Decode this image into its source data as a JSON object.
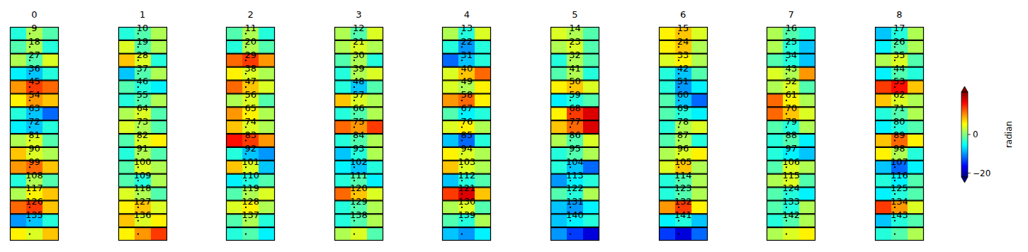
{
  "chart_data": {
    "type": "heatmap",
    "color": "jet",
    "tick_labels": false,
    "colorbar": {
      "label": "radian",
      "range": [
        -22,
        22
      ],
      "ticks": [
        0,
        {
          "value": -20,
          "label": "−20"
        }
      ]
    },
    "panels": [
      {
        "title": "0",
        "values": [
          -4,
          2,
          -2
        ]
      },
      {
        "title": "1",
        "values": [
          -4,
          -2,
          2
        ]
      },
      {
        "title": "2",
        "values": [
          -2,
          2,
          -4
        ]
      },
      {
        "title": "3",
        "values": [
          2,
          -2,
          4
        ]
      },
      {
        "title": "4",
        "values": [
          2,
          -4,
          4
        ]
      },
      {
        "title": "5",
        "values": [
          4,
          2,
          -2
        ]
      },
      {
        "title": "6",
        "values": [
          6,
          8,
          4
        ]
      },
      {
        "title": "7",
        "values": [
          2,
          -2,
          -4
        ]
      },
      {
        "title": "8",
        "values": [
          -8,
          -4,
          2
        ]
      },
      {
        "title": "9",
        "values": [
          -2,
          2,
          -4
        ]
      },
      {
        "title": "10",
        "values": [
          4,
          -2,
          2
        ]
      },
      {
        "title": "11",
        "values": [
          -4,
          2,
          -2
        ]
      },
      {
        "title": "12",
        "values": [
          2,
          4,
          2
        ]
      },
      {
        "title": "13",
        "values": [
          -4,
          -10,
          -4
        ]
      },
      {
        "title": "14",
        "values": [
          2,
          4,
          -2
        ]
      },
      {
        "title": "15",
        "values": [
          6,
          8,
          2
        ]
      },
      {
        "title": "16",
        "values": [
          2,
          -4,
          -8
        ]
      },
      {
        "title": "17",
        "values": [
          -6,
          -2,
          2
        ]
      },
      {
        "title": "18",
        "values": [
          2,
          -2,
          4
        ]
      },
      {
        "title": "19",
        "values": [
          8,
          4,
          -4
        ]
      },
      {
        "title": "20",
        "values": [
          12,
          14,
          10
        ]
      },
      {
        "title": "21",
        "values": [
          -2,
          2,
          -4
        ]
      },
      {
        "title": "22",
        "values": [
          -12,
          -8,
          -4
        ]
      },
      {
        "title": "23",
        "values": [
          -4,
          2,
          -2
        ]
      },
      {
        "title": "24",
        "values": [
          4,
          6,
          2
        ]
      },
      {
        "title": "25",
        "values": [
          -2,
          -4,
          -8
        ]
      },
      {
        "title": "26",
        "values": [
          2,
          4,
          -2
        ]
      },
      {
        "title": "27",
        "values": [
          -6,
          -8,
          -4
        ]
      },
      {
        "title": "28",
        "values": [
          -8,
          -2,
          2
        ]
      },
      {
        "title": "29",
        "values": [
          6,
          4,
          2
        ]
      },
      {
        "title": "30",
        "values": [
          -4,
          2,
          4
        ]
      },
      {
        "title": "31",
        "values": [
          4,
          8,
          12
        ]
      },
      {
        "title": "32",
        "values": [
          -2,
          2,
          -4
        ]
      },
      {
        "title": "33",
        "values": [
          -4,
          -8,
          -2
        ]
      },
      {
        "title": "34",
        "values": [
          4,
          2,
          10
        ]
      },
      {
        "title": "35",
        "values": [
          -6,
          -2,
          -4
        ]
      },
      {
        "title": "36",
        "values": [
          10,
          14,
          12
        ]
      },
      {
        "title": "37",
        "values": [
          -2,
          -4,
          -6
        ]
      },
      {
        "title": "38",
        "values": [
          12,
          8,
          4
        ]
      },
      {
        "title": "39",
        "values": [
          -4,
          -8,
          -2
        ]
      },
      {
        "title": "40",
        "values": [
          4,
          2,
          6
        ]
      },
      {
        "title": "41",
        "values": [
          6,
          8,
          4
        ]
      },
      {
        "title": "42",
        "values": [
          -4,
          -10,
          -6
        ]
      },
      {
        "title": "43",
        "values": [
          2,
          4,
          -2
        ]
      },
      {
        "title": "44",
        "values": [
          14,
          16,
          8
        ]
      },
      {
        "title": "45",
        "values": [
          6,
          10,
          8
        ]
      },
      {
        "title": "46",
        "values": [
          -4,
          -2,
          2
        ]
      },
      {
        "title": "47",
        "values": [
          2,
          4,
          -2
        ]
      },
      {
        "title": "48",
        "values": [
          8,
          4,
          2
        ]
      },
      {
        "title": "49",
        "values": [
          10,
          12,
          6
        ]
      },
      {
        "title": "50",
        "values": [
          -6,
          -4,
          -2
        ]
      },
      {
        "title": "51",
        "values": [
          -2,
          -8,
          -12
        ]
      },
      {
        "title": "52",
        "values": [
          12,
          6,
          2
        ]
      },
      {
        "title": "53",
        "values": [
          8,
          4,
          2
        ]
      },
      {
        "title": "54",
        "values": [
          -4,
          -8,
          -12
        ]
      },
      {
        "title": "55",
        "values": [
          2,
          4,
          -2
        ]
      },
      {
        "title": "56",
        "values": [
          10,
          6,
          2
        ]
      },
      {
        "title": "57",
        "values": [
          -4,
          -2,
          2
        ]
      },
      {
        "title": "58",
        "values": [
          -2,
          -6,
          -4
        ]
      },
      {
        "title": "59",
        "values": [
          6,
          14,
          18
        ]
      },
      {
        "title": "60",
        "values": [
          -2,
          -4,
          -6
        ]
      },
      {
        "title": "61",
        "values": [
          12,
          8,
          4
        ]
      },
      {
        "title": "62",
        "values": [
          -4,
          -2,
          2
        ]
      },
      {
        "title": "63",
        "values": [
          -6,
          -8,
          -4
        ]
      },
      {
        "title": "64",
        "values": [
          4,
          2,
          -2
        ]
      },
      {
        "title": "65",
        "values": [
          8,
          4,
          2
        ]
      },
      {
        "title": "66",
        "values": [
          12,
          10,
          14
        ]
      },
      {
        "title": "67",
        "values": [
          4,
          6,
          2
        ]
      },
      {
        "title": "68",
        "values": [
          8,
          12,
          18
        ]
      },
      {
        "title": "69",
        "values": [
          -4,
          2,
          4
        ]
      },
      {
        "title": "70",
        "values": [
          -2,
          -4,
          2
        ]
      },
      {
        "title": "71",
        "values": [
          -6,
          -4,
          -2
        ]
      },
      {
        "title": "72",
        "values": [
          2,
          4,
          -2
        ]
      },
      {
        "title": "73",
        "values": [
          -2,
          4,
          6
        ]
      },
      {
        "title": "74",
        "values": [
          16,
          14,
          10
        ]
      },
      {
        "title": "75",
        "values": [
          -4,
          -2,
          2
        ]
      },
      {
        "title": "76",
        "values": [
          -8,
          -12,
          -4
        ]
      },
      {
        "title": "77",
        "values": [
          2,
          -2,
          4
        ]
      },
      {
        "title": "78",
        "values": [
          -2,
          2,
          -4
        ]
      },
      {
        "title": "79",
        "values": [
          -4,
          -2,
          -6
        ]
      },
      {
        "title": "80",
        "values": [
          8,
          12,
          6
        ]
      },
      {
        "title": "81",
        "values": [
          8,
          4,
          2
        ]
      },
      {
        "title": "82",
        "values": [
          -4,
          2,
          -2
        ]
      },
      {
        "title": "83",
        "values": [
          -4,
          -8,
          -10
        ]
      },
      {
        "title": "84",
        "values": [
          -8,
          -4,
          2
        ]
      },
      {
        "title": "85",
        "values": [
          6,
          4,
          2
        ]
      },
      {
        "title": "86",
        "values": [
          -4,
          -2,
          2
        ]
      },
      {
        "title": "87",
        "values": [
          2,
          4,
          6
        ]
      },
      {
        "title": "88",
        "values": [
          -4,
          -6,
          -8
        ]
      },
      {
        "title": "89",
        "values": [
          6,
          2,
          -4
        ]
      },
      {
        "title": "90",
        "values": [
          10,
          12,
          8
        ]
      },
      {
        "title": "91",
        "values": [
          -2,
          4,
          2
        ]
      },
      {
        "title": "92",
        "values": [
          8,
          4,
          -8
        ]
      },
      {
        "title": "93",
        "values": [
          -6,
          -8,
          -4
        ]
      },
      {
        "title": "94",
        "values": [
          8,
          4,
          2
        ]
      },
      {
        "title": "95",
        "values": [
          -4,
          -8,
          -12
        ]
      },
      {
        "title": "96",
        "values": [
          4,
          8,
          2
        ]
      },
      {
        "title": "97",
        "values": [
          -2,
          4,
          2
        ]
      },
      {
        "title": "98",
        "values": [
          -8,
          -12,
          -6
        ]
      },
      {
        "title": "99",
        "values": [
          -4,
          2,
          -2
        ]
      },
      {
        "title": "100",
        "values": [
          -2,
          -4,
          2
        ]
      },
      {
        "title": "101",
        "values": [
          -6,
          -4,
          -2
        ]
      },
      {
        "title": "102",
        "values": [
          -4,
          -2,
          -6
        ]
      },
      {
        "title": "103",
        "values": [
          -8,
          -4,
          -2
        ]
      },
      {
        "title": "104",
        "values": [
          -10,
          -6,
          -4
        ]
      },
      {
        "title": "105",
        "values": [
          -4,
          -2,
          2
        ]
      },
      {
        "title": "106",
        "values": [
          2,
          4,
          -2
        ]
      },
      {
        "title": "107",
        "values": [
          -4,
          -6,
          -2
        ]
      },
      {
        "title": "108",
        "values": [
          2,
          6,
          8
        ]
      },
      {
        "title": "109",
        "values": [
          4,
          2,
          -2
        ]
      },
      {
        "title": "110",
        "values": [
          -2,
          2,
          4
        ]
      },
      {
        "title": "111",
        "values": [
          12,
          8,
          4
        ]
      },
      {
        "title": "112",
        "values": [
          14,
          18,
          8
        ]
      },
      {
        "title": "113",
        "values": [
          -2,
          -4,
          2
        ]
      },
      {
        "title": "114",
        "values": [
          -4,
          -2,
          2
        ]
      },
      {
        "title": "115",
        "values": [
          -2,
          -4,
          -6
        ]
      },
      {
        "title": "116",
        "values": [
          -6,
          -4,
          -2
        ]
      },
      {
        "title": "117",
        "values": [
          12,
          14,
          8
        ]
      },
      {
        "title": "118",
        "values": [
          6,
          8,
          4
        ]
      },
      {
        "title": "119",
        "values": [
          4,
          6,
          2
        ]
      },
      {
        "title": "120",
        "values": [
          -4,
          -2,
          2
        ]
      },
      {
        "title": "121",
        "values": [
          2,
          4,
          -2
        ]
      },
      {
        "title": "122",
        "values": [
          -8,
          -10,
          -6
        ]
      },
      {
        "title": "123",
        "values": [
          10,
          14,
          6
        ]
      },
      {
        "title": "124",
        "values": [
          -2,
          -4,
          2
        ]
      },
      {
        "title": "125",
        "values": [
          14,
          10,
          4
        ]
      },
      {
        "title": "126",
        "values": [
          -10,
          -8,
          -4
        ]
      },
      {
        "title": "127",
        "values": [
          8,
          4,
          6
        ]
      },
      {
        "title": "128",
        "values": [
          -2,
          2,
          -4
        ]
      },
      {
        "title": "129",
        "values": [
          -4,
          -2,
          2
        ]
      },
      {
        "title": "130",
        "values": [
          -2,
          -4,
          2
        ]
      },
      {
        "title": "131",
        "values": [
          -8,
          -6,
          -4
        ]
      },
      {
        "title": "132",
        "values": [
          -6,
          -4,
          -8
        ]
      },
      {
        "title": "133",
        "values": [
          -4,
          -2,
          2
        ]
      },
      {
        "title": "134",
        "values": [
          -8,
          -4,
          -2
        ]
      },
      {
        "title": "135",
        "values": [
          6,
          4,
          8
        ]
      },
      {
        "title": "136",
        "values": [
          6,
          10,
          14
        ]
      },
      {
        "title": "137",
        "values": [
          -4,
          -2,
          -6
        ]
      },
      {
        "title": "138",
        "values": [
          2,
          4,
          -2
        ]
      },
      {
        "title": "139",
        "values": [
          -8,
          -10,
          -6
        ]
      },
      {
        "title": "140",
        "values": [
          -10,
          -14,
          -18
        ]
      },
      {
        "title": "141",
        "values": [
          -14,
          -18,
          -12
        ]
      },
      {
        "title": "142",
        "values": [
          2,
          4,
          6
        ]
      },
      {
        "title": "143",
        "values": [
          -4,
          -2,
          2
        ]
      }
    ]
  }
}
